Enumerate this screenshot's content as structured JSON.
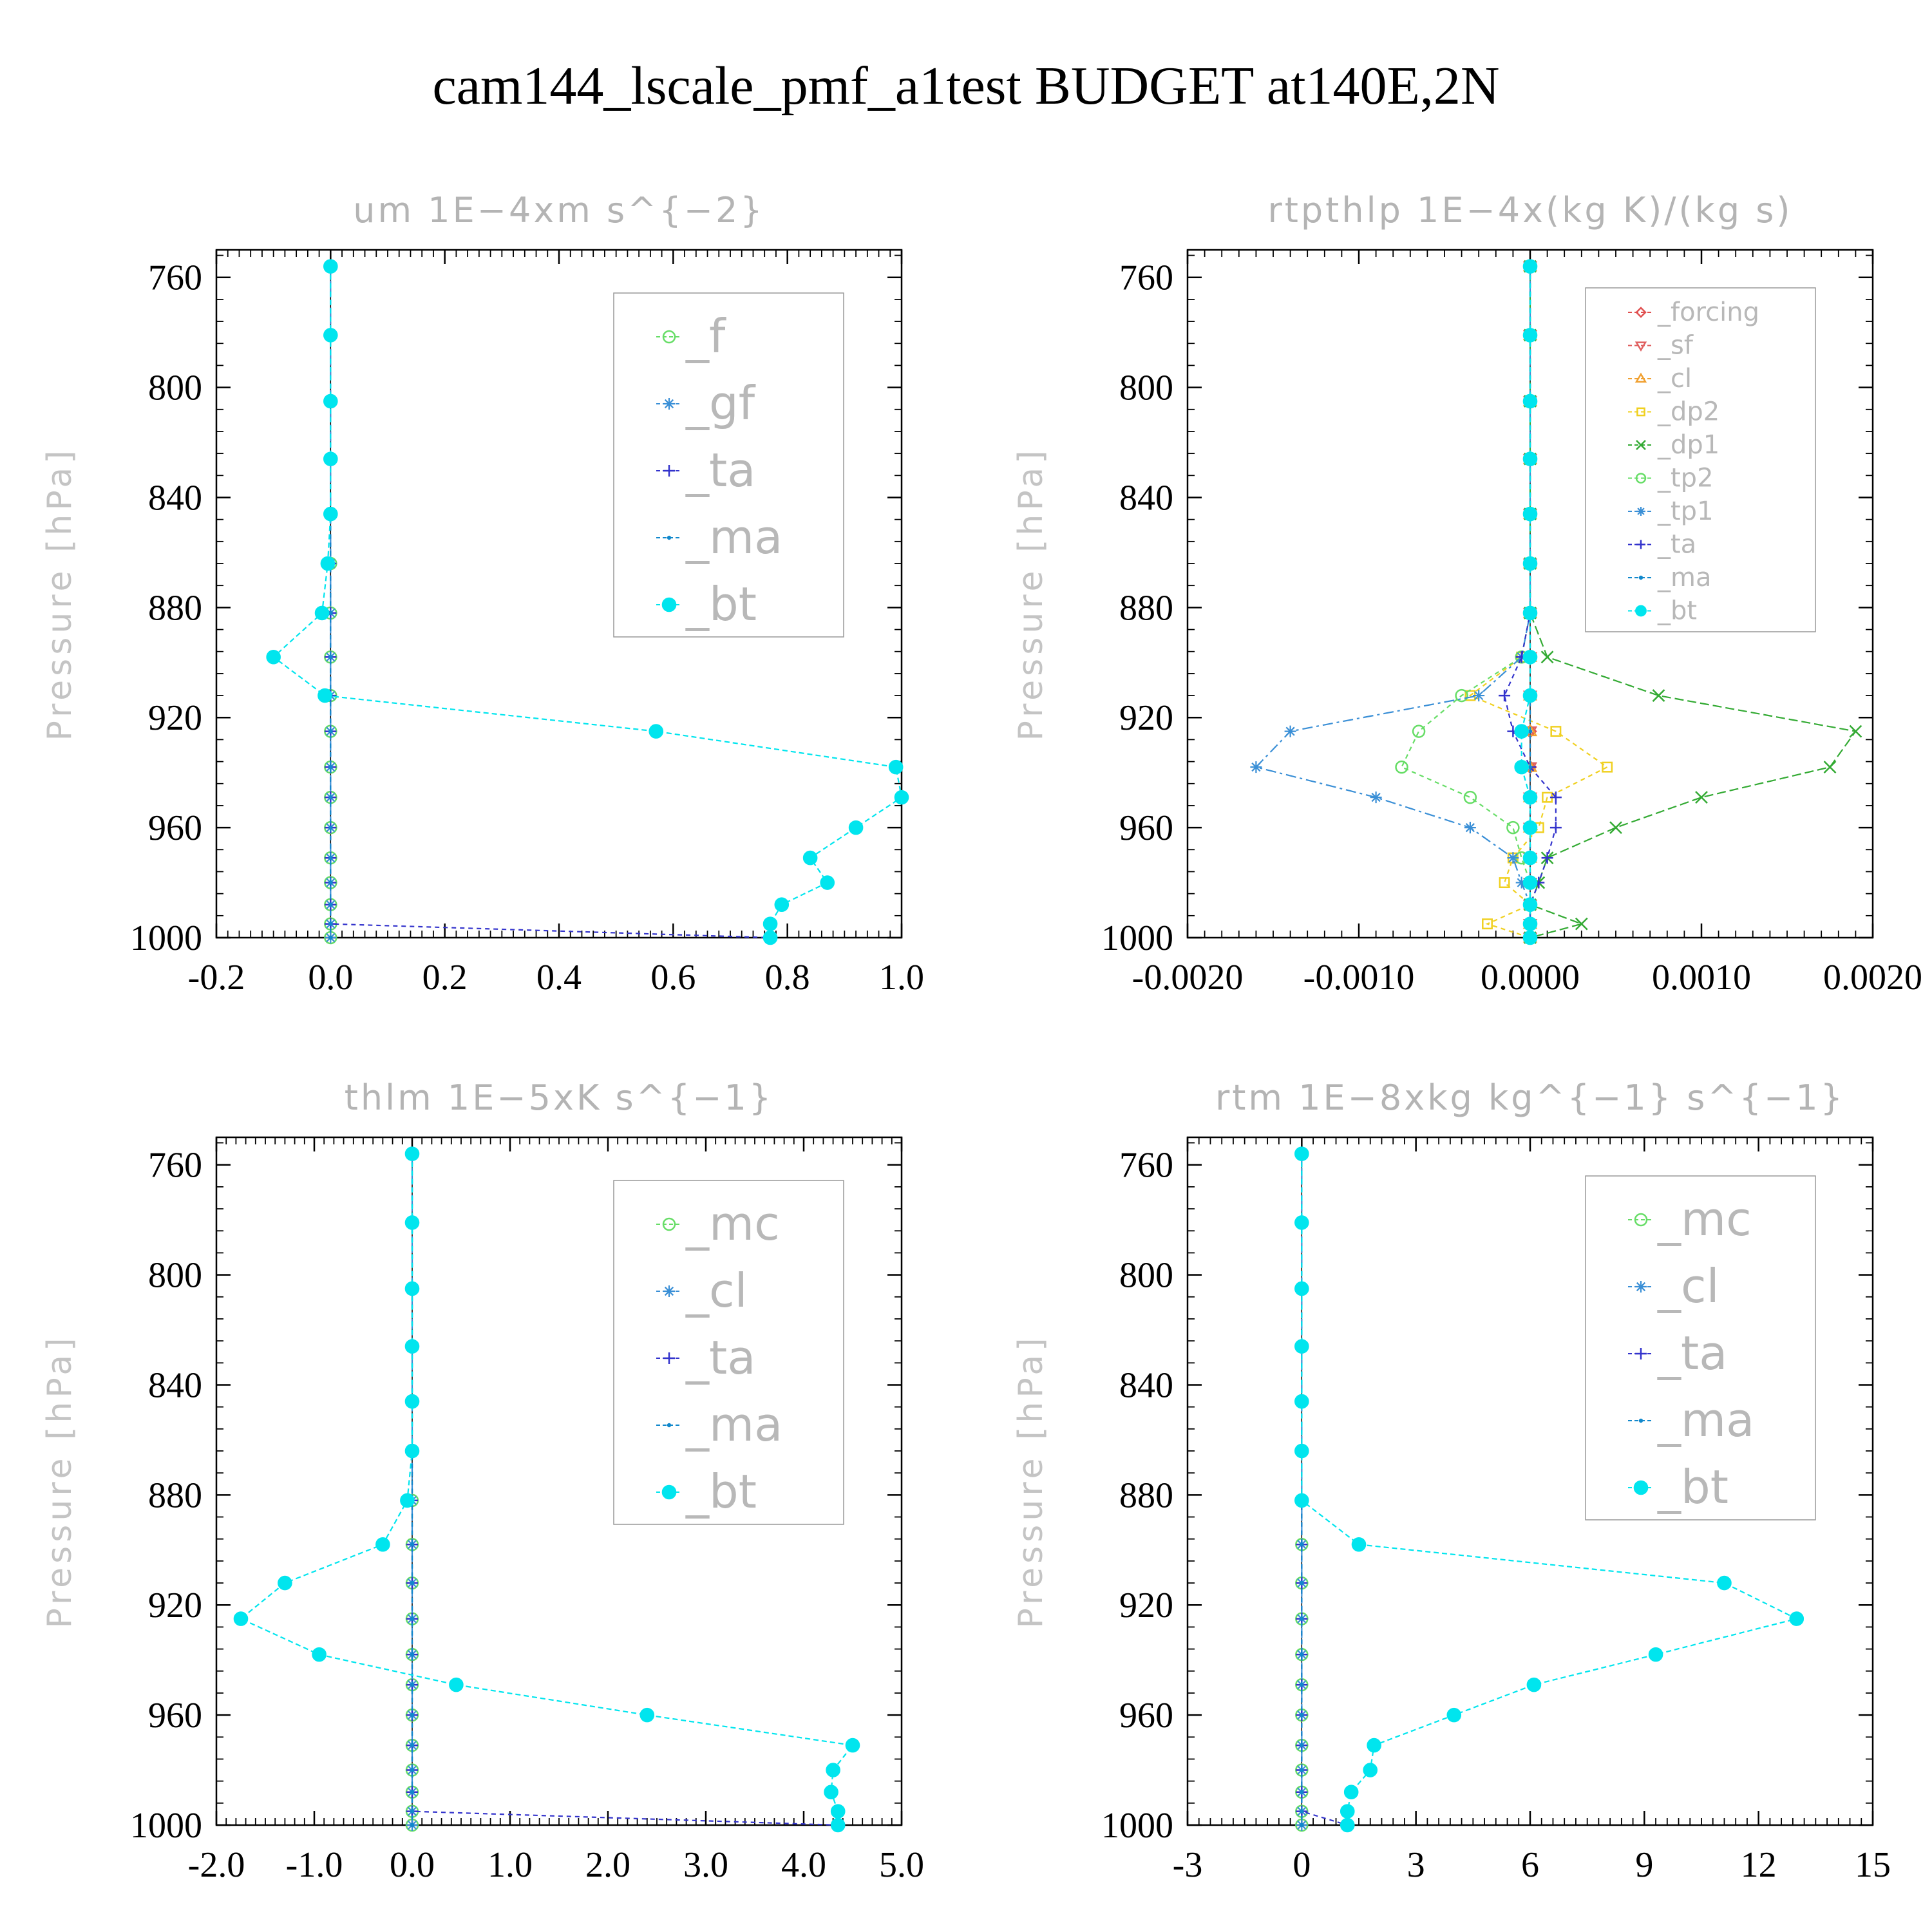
{
  "title": "cam144_lscale_pmf_a1test  BUDGET at140E,2N",
  "chart_data": [
    {
      "type": "line",
      "title": "um   1E−4xm s^{−2}",
      "ylabel": "Pressure [hPa]",
      "xlabel": "",
      "xlim": [
        -0.2,
        1.0
      ],
      "ylim": [
        1000,
        750
      ],
      "xticks": [
        -0.2,
        0.0,
        0.2,
        0.4,
        0.6,
        0.8,
        1.0
      ],
      "xtick_labels": [
        "-0.2",
        "0.0",
        "0.2",
        "0.4",
        "0.6",
        "0.8",
        "1.0"
      ],
      "yticks": [
        760,
        800,
        840,
        880,
        920,
        960,
        1000
      ],
      "ytick_labels": [
        "760",
        "800",
        "840",
        "880",
        "920",
        "960",
        "1000"
      ],
      "levels": [
        756,
        781,
        805,
        826,
        846,
        864,
        882,
        898,
        912,
        925,
        938,
        949,
        960,
        971,
        980,
        988,
        995,
        1000
      ],
      "legend_position": "top-right",
      "series": [
        {
          "name": "_f",
          "color": "#66dd66",
          "marker": "circle",
          "values": [
            0,
            0,
            0,
            0,
            0,
            0,
            0,
            0,
            0,
            0,
            0,
            0,
            0,
            0,
            0,
            0,
            0,
            0
          ]
        },
        {
          "name": "_gf",
          "color": "#3a8fd6",
          "marker": "star",
          "values": [
            0,
            0,
            0,
            0,
            0,
            0,
            0,
            0,
            0,
            0,
            0,
            0,
            0,
            0,
            0,
            0,
            0,
            0
          ]
        },
        {
          "name": "_ta",
          "color": "#3333cc",
          "marker": "plus",
          "values": [
            0,
            0,
            0,
            0,
            0,
            0,
            0,
            0,
            0,
            0,
            0,
            0,
            0,
            0,
            0,
            0,
            0.0,
            0.77
          ]
        },
        {
          "name": "_ma",
          "color": "#1188cc",
          "marker": "dot",
          "values": [
            0,
            0,
            0,
            0,
            0,
            0,
            0,
            0,
            0,
            0,
            0,
            0,
            0,
            0,
            0,
            0,
            0,
            0
          ]
        },
        {
          "name": "_bt",
          "color": "#00e5ee",
          "marker": "bigdot",
          "values": [
            0,
            0,
            0,
            0,
            0,
            -0.005,
            -0.015,
            -0.1,
            -0.01,
            0.57,
            0.99,
            1.0,
            0.92,
            0.84,
            0.87,
            0.79,
            0.77,
            0.77
          ]
        }
      ]
    },
    {
      "type": "line",
      "title": "rtpthlp   1E−4x(kg K)/(kg s)",
      "ylabel": "Pressure [hPa]",
      "xlabel": "",
      "xlim": [
        -0.002,
        0.002
      ],
      "ylim": [
        1000,
        750
      ],
      "xticks": [
        -0.002,
        -0.001,
        0.0,
        0.001,
        0.002
      ],
      "xtick_labels": [
        "-0.0020",
        "-0.0010",
        "0.0000",
        "0.0010",
        "0.0020"
      ],
      "yticks": [
        760,
        800,
        840,
        880,
        920,
        960,
        1000
      ],
      "ytick_labels": [
        "760",
        "800",
        "840",
        "880",
        "920",
        "960",
        "1000"
      ],
      "levels": [
        756,
        781,
        805,
        826,
        846,
        864,
        882,
        898,
        912,
        925,
        938,
        949,
        960,
        971,
        980,
        988,
        995,
        1000
      ],
      "legend_position": "top-right",
      "series": [
        {
          "name": "_forcing",
          "color": "#e05050",
          "marker": "diamond",
          "values": [
            0,
            0,
            0,
            0,
            0,
            0,
            0,
            0,
            0,
            0,
            0,
            0,
            0,
            0,
            0,
            0,
            0,
            0
          ]
        },
        {
          "name": "_sf",
          "color": "#e06060",
          "marker": "triangle-down",
          "values": [
            0,
            0,
            0,
            0,
            0,
            0,
            0,
            0,
            0,
            0,
            0,
            0,
            0,
            0,
            0,
            0,
            0,
            0
          ]
        },
        {
          "name": "_cl",
          "color": "#f0a030",
          "marker": "triangle-up",
          "values": [
            0,
            0,
            0,
            0,
            0,
            0,
            0,
            0,
            0,
            0,
            0,
            0,
            0,
            0,
            0,
            0,
            0,
            0
          ]
        },
        {
          "name": "_dp2",
          "color": "#f0d020",
          "marker": "square",
          "values": [
            0,
            0,
            0,
            0,
            0,
            0,
            0,
            -5e-05,
            -0.00035,
            0.00015,
            0.00045,
            0.0001,
            5e-05,
            -0.0001,
            -0.00015,
            0.0,
            -0.00025,
            0.0
          ]
        },
        {
          "name": "_dp1",
          "color": "#33aa33",
          "marker": "cross",
          "values": [
            0,
            0,
            0,
            0,
            0,
            0,
            0,
            0.0001,
            0.00075,
            0.0019,
            0.00175,
            0.001,
            0.0005,
            0.0001,
            5e-05,
            0.0,
            0.0003,
            0.0
          ]
        },
        {
          "name": "_tp2",
          "color": "#66dd66",
          "marker": "circle",
          "values": [
            0,
            0,
            0,
            0,
            0,
            0,
            0,
            -5e-05,
            -0.0004,
            -0.00065,
            -0.00075,
            -0.00035,
            -0.0001,
            -5e-05,
            0.0,
            0.0,
            0.0,
            0.0
          ]
        },
        {
          "name": "_tp1",
          "color": "#3a8fd6",
          "marker": "star",
          "values": [
            0,
            0,
            0,
            0,
            0,
            0,
            0,
            -5e-05,
            -0.0003,
            -0.0014,
            -0.0016,
            -0.0009,
            -0.00035,
            -0.0001,
            -5e-05,
            0.0,
            0.0,
            0.0
          ]
        },
        {
          "name": "_ta",
          "color": "#3333cc",
          "marker": "plus",
          "values": [
            0,
            0,
            0,
            0,
            0,
            0,
            0,
            -5e-05,
            -0.00015,
            -0.0001,
            0.0,
            0.00015,
            0.00015,
            0.0001,
            5e-05,
            0.0,
            0.0,
            0.0
          ]
        },
        {
          "name": "_ma",
          "color": "#1188cc",
          "marker": "dot",
          "values": [
            0,
            0,
            0,
            0,
            0,
            0,
            0,
            0,
            0,
            0,
            0,
            0,
            0,
            0,
            0,
            0,
            0,
            0
          ]
        },
        {
          "name": "_bt",
          "color": "#00e5ee",
          "marker": "bigdot",
          "values": [
            0,
            0,
            0,
            0,
            0,
            0,
            0,
            0,
            0,
            -5e-05,
            -5e-05,
            0,
            0,
            0,
            0,
            0,
            0,
            0
          ]
        }
      ]
    },
    {
      "type": "line",
      "title": "thlm   1E−5xK s^{−1}",
      "ylabel": "Pressure [hPa]",
      "xlabel": "",
      "xlim": [
        -2.0,
        5.0
      ],
      "ylim": [
        1000,
        750
      ],
      "xticks": [
        -2.0,
        -1.0,
        0.0,
        1.0,
        2.0,
        3.0,
        4.0,
        5.0
      ],
      "xtick_labels": [
        "-2.0",
        "-1.0",
        "0.0",
        "1.0",
        "2.0",
        "3.0",
        "4.0",
        "5.0"
      ],
      "yticks": [
        760,
        800,
        840,
        880,
        920,
        960,
        1000
      ],
      "ytick_labels": [
        "760",
        "800",
        "840",
        "880",
        "920",
        "960",
        "1000"
      ],
      "levels": [
        756,
        781,
        805,
        826,
        846,
        864,
        882,
        898,
        912,
        925,
        938,
        949,
        960,
        971,
        980,
        988,
        995,
        1000
      ],
      "legend_position": "top-right",
      "series": [
        {
          "name": "_mc",
          "color": "#66dd66",
          "marker": "circle",
          "values": [
            0,
            0,
            0,
            0,
            0,
            0,
            0,
            0,
            0,
            0,
            0,
            0,
            0,
            0,
            0,
            0,
            0,
            0
          ]
        },
        {
          "name": "_cl",
          "color": "#3a8fd6",
          "marker": "star",
          "values": [
            0,
            0,
            0,
            0,
            0,
            0,
            0,
            0,
            0,
            0,
            0,
            0,
            0,
            0,
            0,
            0,
            0,
            0
          ]
        },
        {
          "name": "_ta",
          "color": "#3333cc",
          "marker": "plus",
          "values": [
            0,
            0,
            0,
            0,
            0,
            0,
            0,
            0,
            0,
            0,
            0,
            0,
            0,
            0,
            0,
            0,
            0.0,
            4.35
          ]
        },
        {
          "name": "_ma",
          "color": "#1188cc",
          "marker": "dot",
          "values": [
            0,
            0,
            0,
            0,
            0,
            0,
            0,
            0,
            0,
            0,
            0,
            0,
            0,
            0,
            0,
            0,
            0,
            0
          ]
        },
        {
          "name": "_bt",
          "color": "#00e5ee",
          "marker": "bigdot",
          "values": [
            0,
            0,
            0,
            0,
            0,
            0,
            -0.05,
            -0.3,
            -1.3,
            -1.75,
            -0.95,
            0.45,
            2.4,
            4.5,
            4.3,
            4.28,
            4.35,
            4.35
          ]
        }
      ]
    },
    {
      "type": "line",
      "title": "rtm   1E−8xkg kg^{−1} s^{−1}",
      "ylabel": "Pressure [hPa]",
      "xlabel": "",
      "xlim": [
        -3,
        15
      ],
      "ylim": [
        1000,
        750
      ],
      "xticks": [
        -3,
        0,
        3,
        6,
        9,
        12,
        15
      ],
      "xtick_labels": [
        "-3",
        "0",
        "3",
        "6",
        "9",
        "12",
        "15"
      ],
      "yticks": [
        760,
        800,
        840,
        880,
        920,
        960,
        1000
      ],
      "ytick_labels": [
        "760",
        "800",
        "840",
        "880",
        "920",
        "960",
        "1000"
      ],
      "levels": [
        756,
        781,
        805,
        826,
        846,
        864,
        882,
        898,
        912,
        925,
        938,
        949,
        960,
        971,
        980,
        988,
        995,
        1000
      ],
      "legend_position": "top-right",
      "series": [
        {
          "name": "_mc",
          "color": "#66dd66",
          "marker": "circle",
          "values": [
            0,
            0,
            0,
            0,
            0,
            0,
            0,
            0,
            0,
            0,
            0,
            0,
            0,
            0,
            0,
            0,
            0,
            0
          ]
        },
        {
          "name": "_cl",
          "color": "#3a8fd6",
          "marker": "star",
          "values": [
            0,
            0,
            0,
            0,
            0,
            0,
            0,
            0,
            0,
            0,
            0,
            0,
            0,
            0,
            0,
            0,
            0,
            0
          ]
        },
        {
          "name": "_ta",
          "color": "#3333cc",
          "marker": "plus",
          "values": [
            0,
            0,
            0,
            0,
            0,
            0,
            0,
            0,
            0,
            0,
            0,
            0,
            0,
            0,
            0,
            0,
            0.0,
            1.2
          ]
        },
        {
          "name": "_ma",
          "color": "#1188cc",
          "marker": "dot",
          "values": [
            0,
            0,
            0,
            0,
            0,
            0,
            0,
            0,
            0,
            0,
            0,
            0,
            0,
            0,
            0,
            0,
            0,
            0
          ]
        },
        {
          "name": "_bt",
          "color": "#00e5ee",
          "marker": "bigdot",
          "values": [
            0,
            0,
            0,
            0,
            0,
            0,
            0,
            1.5,
            11.1,
            13.0,
            9.3,
            6.1,
            4.0,
            1.9,
            1.8,
            1.3,
            1.2,
            1.2
          ]
        }
      ]
    }
  ]
}
